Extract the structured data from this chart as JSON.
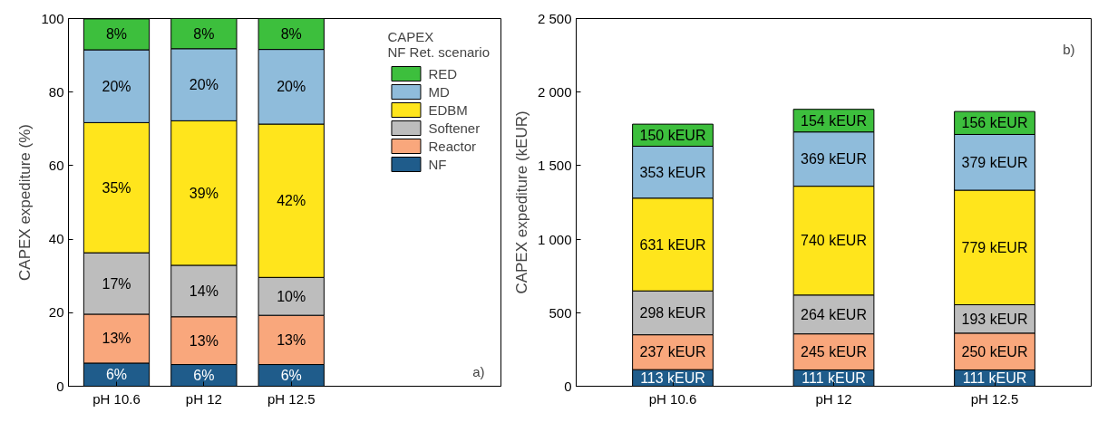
{
  "chart_data": [
    {
      "type": "bar",
      "stacked": true,
      "ylabel": "CAPEX expediture (%)",
      "categories": [
        "pH 10.6",
        "pH 12",
        "pH 12.5"
      ],
      "ylim": [
        0,
        100
      ],
      "yticks": [
        0,
        20,
        40,
        60,
        80,
        100
      ],
      "legend": "top right",
      "legend_title": "CAPEX\nNF Ret. scenario",
      "annotations": [
        "a)"
      ],
      "series": [
        {
          "name": "NF",
          "color": "#1f5c8b",
          "values": [
            6.3,
            5.9,
            5.9
          ],
          "value_labels": [
            "6%",
            "6%",
            "6%"
          ]
        },
        {
          "name": "Reactor",
          "color": "#f9a77c",
          "values": [
            13.3,
            13.0,
            13.4
          ],
          "value_labels": [
            "13%",
            "13%",
            "13%"
          ]
        },
        {
          "name": "Softener",
          "color": "#bdbdbd",
          "values": [
            16.7,
            14.0,
            10.3
          ],
          "value_labels": [
            "17%",
            "14%",
            "10%"
          ]
        },
        {
          "name": "EDBM",
          "color": "#ffe51c",
          "values": [
            35.4,
            39.3,
            41.7
          ],
          "value_labels": [
            "35%",
            "39%",
            "42%"
          ]
        },
        {
          "name": "MD",
          "color": "#8fbcdb",
          "values": [
            19.8,
            19.6,
            20.3
          ],
          "value_labels": [
            "20%",
            "20%",
            "20%"
          ]
        },
        {
          "name": "RED",
          "color": "#3dbf3d",
          "values": [
            8.4,
            8.2,
            8.4
          ],
          "value_labels": [
            "8%",
            "8%",
            "8%"
          ]
        }
      ]
    },
    {
      "type": "bar",
      "stacked": true,
      "ylabel": "CAPEX expediture (kEUR)",
      "categories": [
        "pH 10.6",
        "pH 12",
        "pH 12.5"
      ],
      "ylim": [
        0,
        2500
      ],
      "yticks": [
        0,
        500,
        {
          "value": 1000,
          "label": "1 000"
        },
        {
          "value": 1500,
          "label": "1 500"
        },
        {
          "value": 2000,
          "label": "2 000"
        },
        {
          "value": 2500,
          "label": "2 500"
        }
      ],
      "annotations": [
        "b)"
      ],
      "series": [
        {
          "color": "#1f5c8b",
          "values": [
            113,
            111,
            111
          ],
          "value_labels": [
            "113 kEUR",
            "111 kEUR",
            "111 kEUR"
          ]
        },
        {
          "color": "#f9a77c",
          "values": [
            237,
            245,
            250
          ],
          "value_labels": [
            "237 kEUR",
            "245 kEUR",
            "250 kEUR"
          ]
        },
        {
          "color": "#bdbdbd",
          "values": [
            298,
            264,
            193
          ],
          "value_labels": [
            "298 kEUR",
            "264 kEUR",
            "193 kEUR"
          ]
        },
        {
          "color": "#ffe51c",
          "values": [
            631,
            740,
            779
          ],
          "value_labels": [
            "631 kEUR",
            "740 kEUR",
            "779 kEUR"
          ]
        },
        {
          "color": "#8fbcdb",
          "values": [
            353,
            369,
            379
          ],
          "value_labels": [
            "353 kEUR",
            "369 kEUR",
            "379 kEUR"
          ]
        },
        {
          "color": "#3dbf3d",
          "values": [
            150,
            154,
            156
          ],
          "value_labels": [
            "150 kEUR",
            "154 kEUR",
            "156 kEUR"
          ]
        }
      ]
    }
  ]
}
